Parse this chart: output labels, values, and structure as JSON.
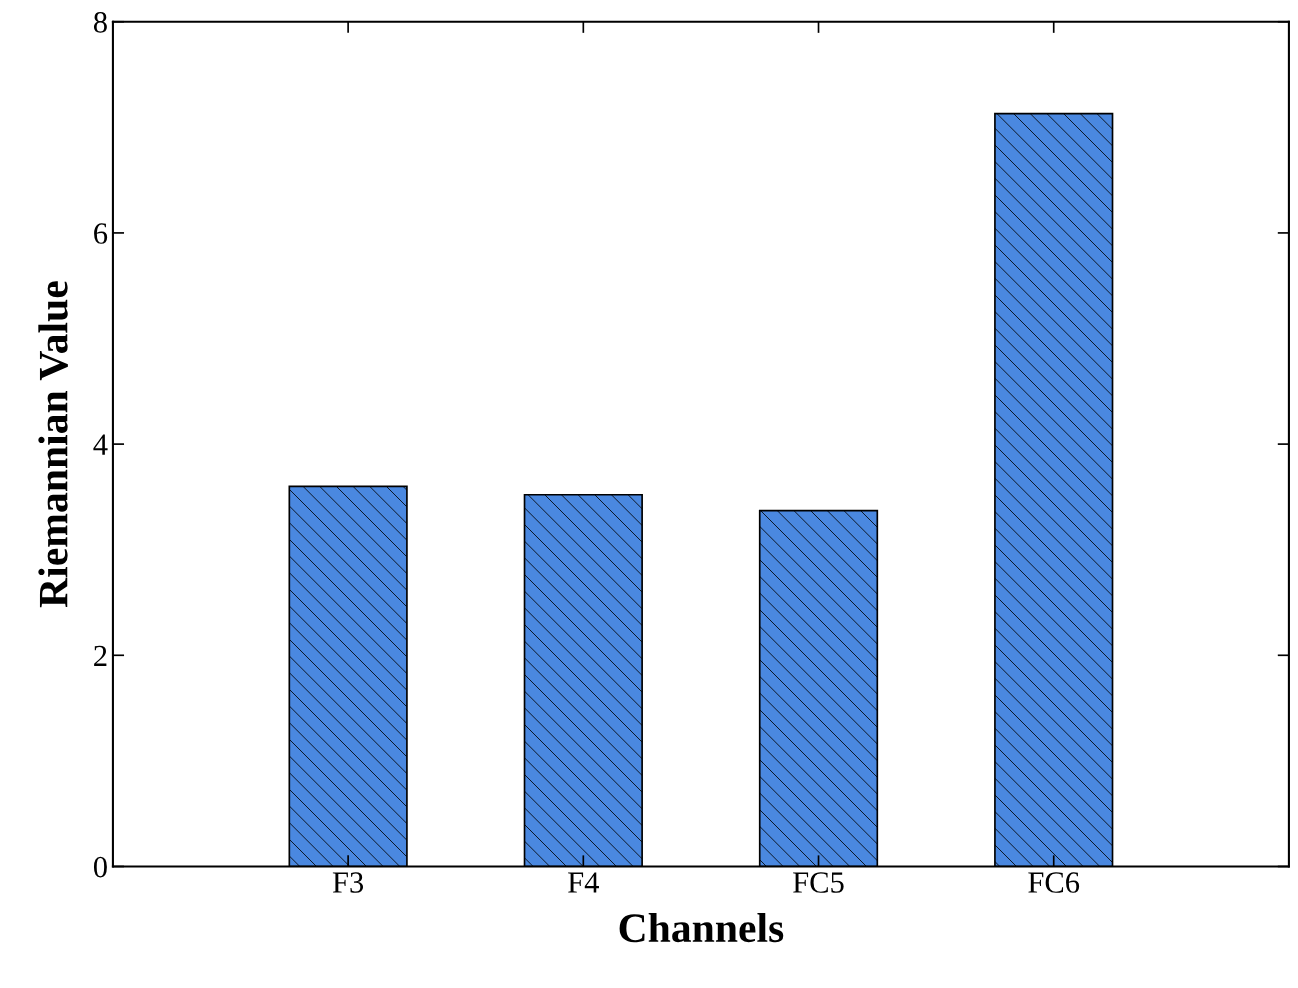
{
  "chart_data": {
    "type": "bar",
    "xlabel": "Channels",
    "ylabel": "Riemannian Value",
    "categories": [
      "F3",
      "F4",
      "FC5",
      "FC6"
    ],
    "values": [
      3.6,
      3.52,
      3.37,
      7.13
    ],
    "color": "#4a88e0",
    "ylim": [
      0,
      8
    ],
    "yticks": [
      0,
      2,
      4,
      6,
      8
    ],
    "grid": false
  }
}
